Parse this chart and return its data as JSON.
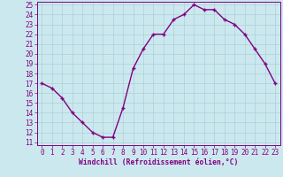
{
  "x": [
    0,
    1,
    2,
    3,
    4,
    5,
    6,
    7,
    8,
    9,
    10,
    11,
    12,
    13,
    14,
    15,
    16,
    17,
    18,
    19,
    20,
    21,
    22,
    23
  ],
  "y": [
    17,
    16.5,
    15.5,
    14,
    13,
    12,
    11.5,
    11.5,
    14.5,
    18.5,
    20.5,
    22,
    22,
    23.5,
    24,
    25,
    24.5,
    24.5,
    23.5,
    23,
    22,
    20.5,
    19,
    17
  ],
  "line_color": "#800080",
  "marker": "+",
  "bg_color": "#cce8ef",
  "grid_color": "#b0d4dc",
  "xlabel": "Windchill (Refroidissement éolien,°C)",
  "xlabel_color": "#800080",
  "tick_color": "#800080",
  "ylim": [
    11,
    25
  ],
  "xlim": [
    0,
    23
  ],
  "yticks": [
    11,
    12,
    13,
    14,
    15,
    16,
    17,
    18,
    19,
    20,
    21,
    22,
    23,
    24,
    25
  ],
  "xticks": [
    0,
    1,
    2,
    3,
    4,
    5,
    6,
    7,
    8,
    9,
    10,
    11,
    12,
    13,
    14,
    15,
    16,
    17,
    18,
    19,
    20,
    21,
    22,
    23
  ],
  "font_name": "monospace",
  "linewidth": 1.0,
  "markersize": 3.5,
  "tick_fontsize": 5.5,
  "xlabel_fontsize": 5.8
}
